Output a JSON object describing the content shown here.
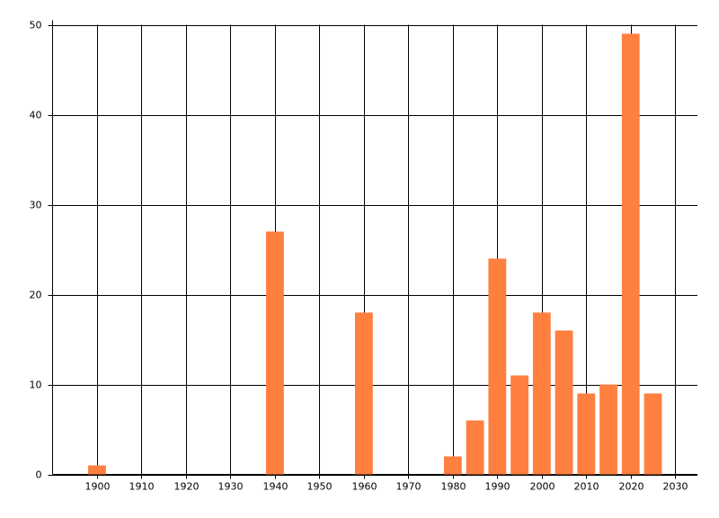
{
  "chart_data": {
    "type": "bar",
    "x": [
      1900,
      1940,
      1960,
      1980,
      1985,
      1990,
      1995,
      2000,
      2005,
      2010,
      2015,
      2020,
      2025
    ],
    "values": [
      1,
      27,
      18,
      2,
      6,
      24,
      11,
      18,
      16,
      9,
      10,
      49,
      9
    ],
    "color": "#ff7f3f",
    "xlim": [
      1890,
      2035
    ],
    "xticks": [
      1900,
      1910,
      1920,
      1930,
      1940,
      1950,
      1960,
      1970,
      1980,
      1990,
      2000,
      2010,
      2020,
      2030
    ],
    "ylim": [
      0,
      50
    ],
    "yticks": [
      0,
      10,
      20,
      30,
      40,
      50
    ],
    "grid": true
  }
}
